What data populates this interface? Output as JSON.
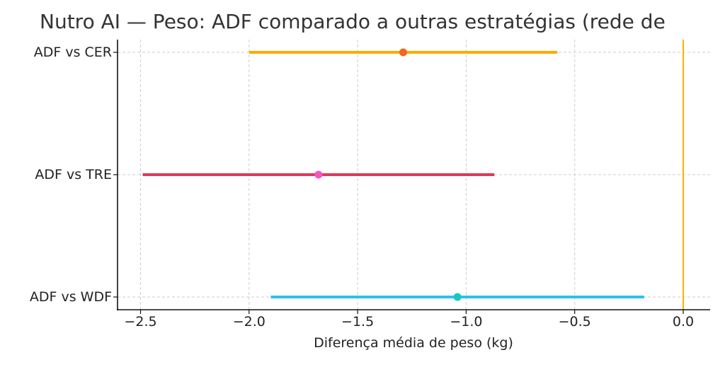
{
  "chart_data": {
    "type": "forest",
    "title": "Nutro AI — Peso: ADF comparado a outras estratégias (rede de",
    "xlabel": "Diferença média de peso (kg)",
    "ylabel": "",
    "xlim": [
      -2.62,
      0.12
    ],
    "grid": true,
    "categories": [
      "ADF vs CER",
      "ADF vs TRE",
      "ADF vs WDF"
    ],
    "series": [
      {
        "name": "ADF vs CER",
        "estimate": -1.29,
        "ci_low": -2.0,
        "ci_high": -0.58,
        "line_color": "#FFAA00",
        "point_color": "#F26522"
      },
      {
        "name": "ADF vs TRE",
        "estimate": -1.68,
        "ci_low": -2.49,
        "ci_high": -0.87,
        "line_color": "#E0385A",
        "point_color": "#F455C1"
      },
      {
        "name": "ADF vs WDF",
        "estimate": -1.04,
        "ci_low": -1.9,
        "ci_high": -0.18,
        "line_color": "#2DC0F0",
        "point_color": "#12C9C0"
      }
    ],
    "x_ticks": [
      -2.5,
      -2.0,
      -1.5,
      -1.0,
      -0.5,
      0.0
    ],
    "x_tick_labels": [
      "−2.5",
      "−2.0",
      "−1.5",
      "−1.0",
      "−0.5",
      "0.0"
    ],
    "reference_line": {
      "x": 0.0,
      "color": "#FFB000"
    }
  }
}
